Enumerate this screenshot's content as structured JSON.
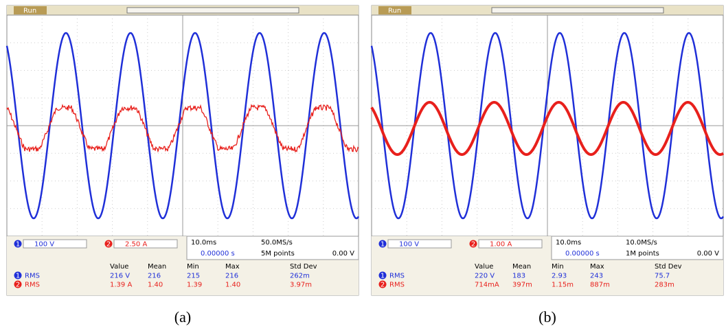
{
  "panels": [
    {
      "caption": "(a)",
      "status": "Run",
      "channel_1": {
        "badge": "1",
        "scale": "100 V"
      },
      "channel_2": {
        "badge": "2",
        "scale": "2.50 A"
      },
      "timebase": {
        "scale": "10.0ms",
        "sample_rate": "50.0MS/s",
        "delay": "0.00000 s",
        "record_length": "5M points",
        "trigger_level": "0.00 V"
      },
      "measurements": {
        "header": [
          "Value",
          "Mean",
          "Min",
          "Max",
          "Std Dev"
        ],
        "rows": [
          {
            "badge": "1",
            "type": "RMS",
            "cells": [
              "216 V",
              "216",
              "215",
              "216",
              "262m"
            ]
          },
          {
            "badge": "2",
            "type": "RMS",
            "cells": [
              "1.39 A",
              "1.40",
              "1.39",
              "1.40",
              "3.97m"
            ]
          }
        ]
      }
    },
    {
      "caption": "(b)",
      "status": "Run",
      "channel_1": {
        "badge": "1",
        "scale": "100 V"
      },
      "channel_2": {
        "badge": "2",
        "scale": "1.00 A"
      },
      "timebase": {
        "scale": "10.0ms",
        "sample_rate": "10.0MS/s",
        "delay": "0.00000 s",
        "record_length": "1M points",
        "trigger_level": "0.00 V"
      },
      "measurements": {
        "header": [
          "Value",
          "Mean",
          "Min",
          "Max",
          "Std Dev"
        ],
        "rows": [
          {
            "badge": "1",
            "type": "RMS",
            "cells": [
              "220 V",
              "183",
              "2.93",
              "243",
              "75.7"
            ]
          },
          {
            "badge": "2",
            "type": "RMS",
            "cells": [
              "714mA",
              "397m",
              "1.15m",
              "887m",
              "283m"
            ]
          }
        ]
      }
    }
  ]
}
